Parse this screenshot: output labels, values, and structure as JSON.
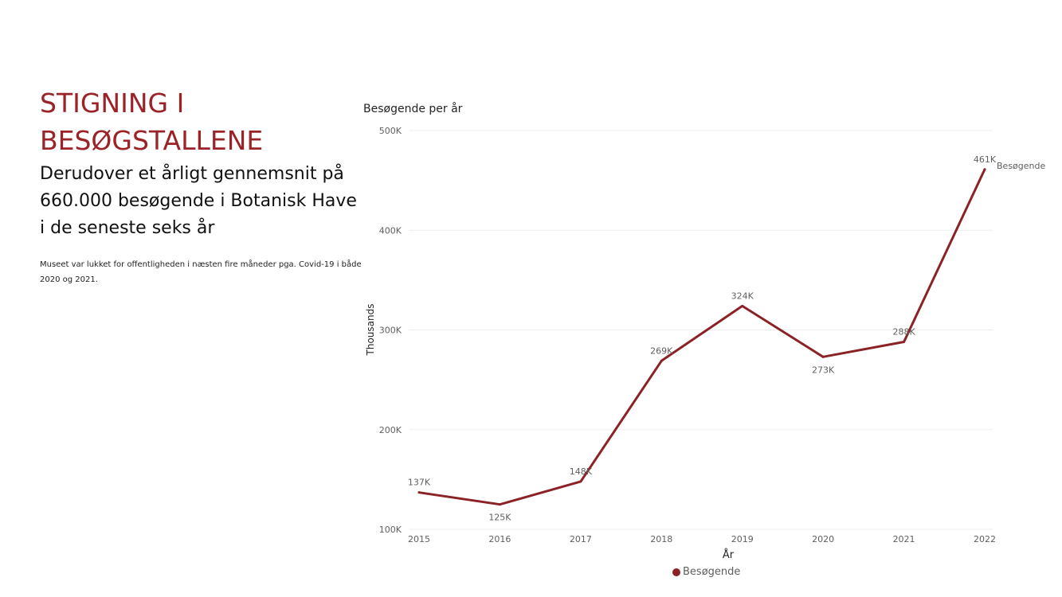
{
  "text": {
    "heading": "STIGNING I BESØGSTALLENE",
    "subheading": "Derudover et årligt gennemsnit på 660.000 besøgende i Botanisk Have i de seneste seks år",
    "note": "Museet var lukket for offentligheden i næsten fire måneder pga. Covid-19 i både 2020 og 2021."
  },
  "colors": {
    "accent": "#9b2226",
    "series": "#8b2326",
    "axis_text": "#605e5c",
    "gridline": "#eeeeee"
  },
  "chart_data": {
    "type": "line",
    "title": "Besøgende per år",
    "xlabel": "År",
    "ylabel": "Thousands",
    "x": [
      "2015",
      "2016",
      "2017",
      "2018",
      "2019",
      "2020",
      "2021",
      "2022"
    ],
    "series": [
      {
        "name": "Besøgende",
        "values": [
          137,
          125,
          148,
          269,
          324,
          273,
          288,
          461
        ],
        "labels": [
          "137K",
          "125K",
          "148K",
          "269K",
          "324K",
          "273K",
          "288K",
          "461K"
        ]
      }
    ],
    "ylim": [
      100,
      500
    ],
    "yticks": [
      100,
      200,
      300,
      400,
      500
    ],
    "ytick_labels": [
      "100K",
      "200K",
      "300K",
      "400K",
      "500K"
    ],
    "grid": true,
    "legend": "bottom",
    "end_label": "Besøgende"
  }
}
